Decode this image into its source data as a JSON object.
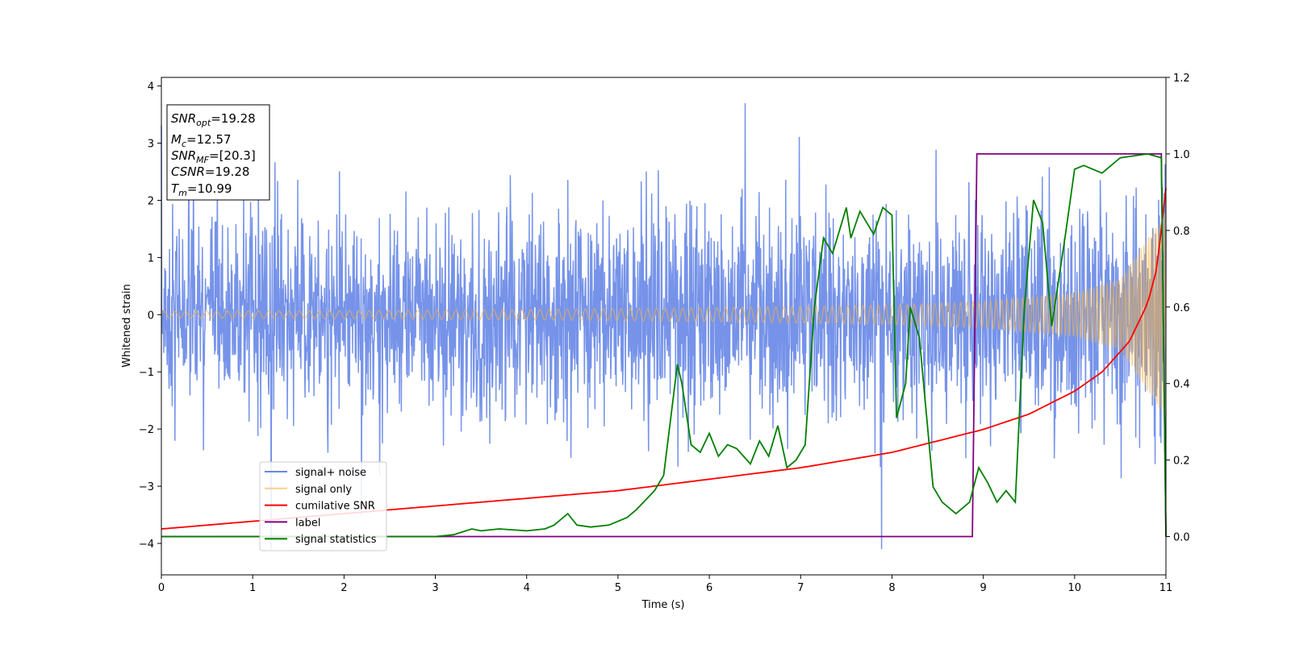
{
  "chart_data": {
    "type": "line",
    "xlabel": "Time (s)",
    "ylabel": "Whitened strain",
    "xlim": [
      0,
      11
    ],
    "ylim_left": [
      -4.55,
      4.15
    ],
    "ylim_right": [
      -0.1,
      1.2
    ],
    "xticks": [
      "0",
      "1",
      "2",
      "3",
      "4",
      "5",
      "6",
      "7",
      "8",
      "9",
      "10",
      "11"
    ],
    "yticks_left": [
      "4",
      "3",
      "2",
      "1",
      "0",
      "−1",
      "−2",
      "−3",
      "−4"
    ],
    "yticks_right": [
      "1.2",
      "1.0",
      "0.8",
      "0.6",
      "0.4",
      "0.2",
      "0.0"
    ],
    "colors": {
      "signal_noise": "#4169e1",
      "signal_only": "#f5b342",
      "cumulative_snr": "#ff0000",
      "label": "#800080",
      "signal_statistics": "#008000"
    },
    "series": [
      {
        "name": "signal+ noise",
        "axis": "left",
        "amplitude_range": [
          -4.1,
          3.7
        ]
      },
      {
        "name": "signal only",
        "axis": "left",
        "envelope": {
          "x": [
            0,
            2,
            4,
            6,
            8,
            9,
            10,
            10.5,
            11
          ],
          "amp": [
            0.06,
            0.07,
            0.09,
            0.12,
            0.17,
            0.23,
            0.38,
            0.62,
            1.8
          ]
        }
      },
      {
        "name": "cumilative SNR",
        "axis": "right",
        "x": [
          0,
          1,
          2,
          3,
          4,
          5,
          6,
          7,
          7.5,
          8,
          8.5,
          9,
          9.5,
          10,
          10.3,
          10.6,
          10.8,
          10.9,
          11
        ],
        "y": [
          0.02,
          0.04,
          0.06,
          0.08,
          0.1,
          0.12,
          0.15,
          0.18,
          0.2,
          0.22,
          0.25,
          0.28,
          0.32,
          0.38,
          0.43,
          0.51,
          0.61,
          0.7,
          0.91
        ]
      },
      {
        "name": "label",
        "axis": "right",
        "x": [
          0,
          8.88,
          8.93,
          10.95,
          11
        ],
        "y": [
          0.0,
          0.0,
          1.0,
          1.0,
          0.0
        ]
      },
      {
        "name": "signal statistics",
        "axis": "right",
        "x": [
          0,
          1,
          2,
          3,
          3.2,
          3.4,
          3.5,
          3.7,
          4,
          4.2,
          4.3,
          4.45,
          4.55,
          4.7,
          4.9,
          5.1,
          5.2,
          5.4,
          5.5,
          5.65,
          5.7,
          5.8,
          5.9,
          6,
          6.1,
          6.2,
          6.3,
          6.45,
          6.55,
          6.65,
          6.75,
          6.85,
          6.95,
          7.05,
          7.15,
          7.25,
          7.35,
          7.5,
          7.55,
          7.65,
          7.8,
          7.9,
          8,
          8.05,
          8.15,
          8.2,
          8.3,
          8.45,
          8.55,
          8.7,
          8.85,
          8.95,
          9.05,
          9.15,
          9.25,
          9.35,
          9.45,
          9.55,
          9.65,
          9.75,
          9.9,
          10,
          10.1,
          10.3,
          10.5,
          10.8,
          10.95,
          11
        ],
        "y": [
          0.0,
          0.0,
          0.0,
          0.0,
          0.005,
          0.02,
          0.015,
          0.02,
          0.015,
          0.02,
          0.03,
          0.06,
          0.03,
          0.025,
          0.03,
          0.05,
          0.07,
          0.12,
          0.16,
          0.45,
          0.4,
          0.24,
          0.22,
          0.27,
          0.21,
          0.24,
          0.23,
          0.19,
          0.25,
          0.21,
          0.29,
          0.18,
          0.2,
          0.24,
          0.6,
          0.78,
          0.74,
          0.86,
          0.78,
          0.85,
          0.79,
          0.86,
          0.84,
          0.31,
          0.4,
          0.6,
          0.52,
          0.13,
          0.09,
          0.06,
          0.09,
          0.18,
          0.14,
          0.09,
          0.12,
          0.09,
          0.6,
          0.88,
          0.82,
          0.55,
          0.79,
          0.96,
          0.97,
          0.95,
          0.99,
          1.0,
          0.99,
          0.0
        ]
      }
    ],
    "legend": {
      "placement": "lower-left",
      "entries": [
        "signal+ noise",
        "signal only",
        "cumilative SNR",
        "label",
        "signal statistics"
      ]
    },
    "annotation": {
      "placement": "upper-left",
      "lines": [
        {
          "sym": "SNR",
          "sub": "opt",
          "value": "=19.28"
        },
        {
          "sym": "M",
          "sub": "c",
          "value": "=12.57"
        },
        {
          "sym": "SNR",
          "sub": "MF",
          "value": "=[20.3]"
        },
        {
          "sym": "CSNR",
          "sub": "",
          "value": "=19.28"
        },
        {
          "sym": "T",
          "sub": "m",
          "value": "=10.99"
        }
      ]
    }
  }
}
